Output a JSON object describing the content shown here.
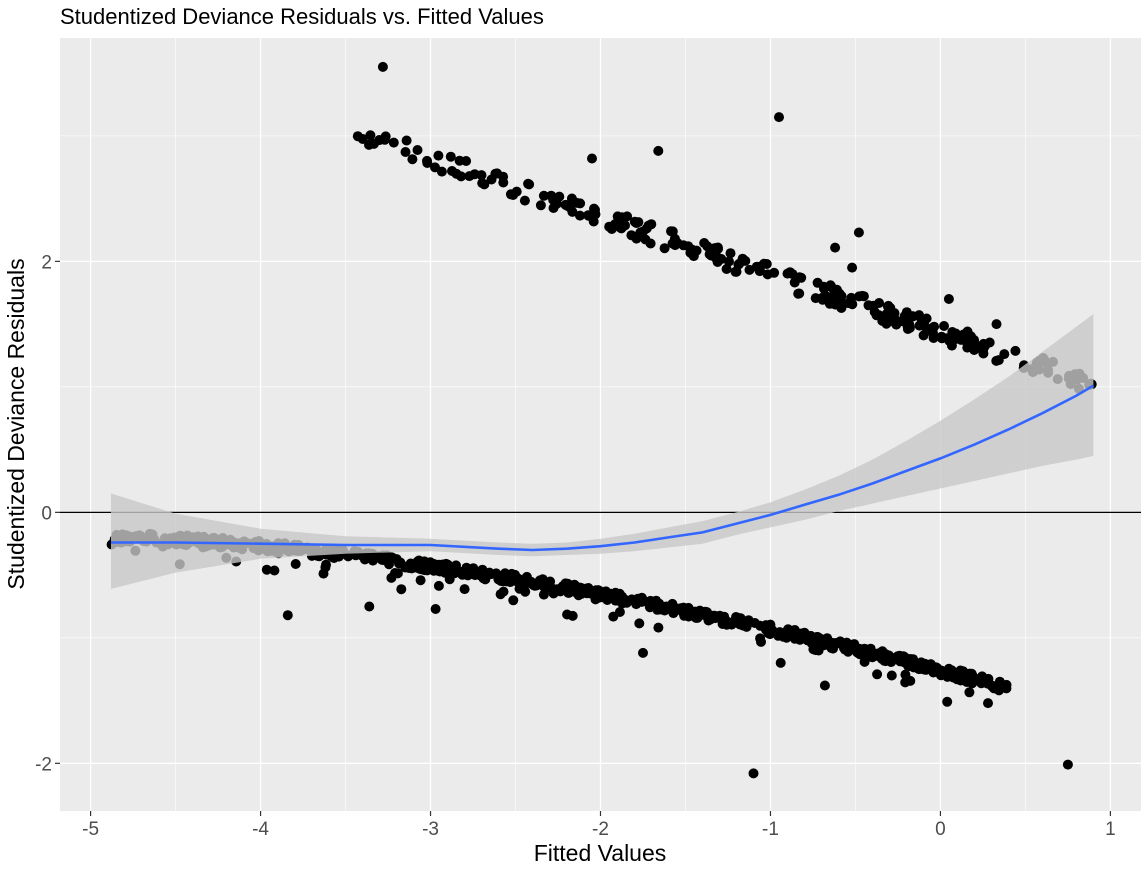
{
  "chart_data": {
    "type": "scatter",
    "title": "Studentized Deviance Residuals vs. Fitted Values",
    "xlabel": "Fitted Values",
    "ylabel": "Studentized Deviance Residuals",
    "xlim": [
      -5.18,
      1.18
    ],
    "ylim": [
      -2.38,
      3.78
    ],
    "x_ticks": [
      -5,
      -4,
      -3,
      -2,
      -1,
      0,
      1
    ],
    "x_tick_labels": [
      "-5",
      "-4",
      "-3",
      "-2",
      "-1",
      "0",
      "1"
    ],
    "y_ticks": [
      -2,
      0,
      2
    ],
    "y_tick_labels": [
      "-2",
      "0",
      "2"
    ],
    "grid": true,
    "legend": "none",
    "reference_line": {
      "y": 0,
      "color": "#000000"
    },
    "colors": {
      "panel": "#ebebeb",
      "gridline": "#ffffff",
      "points": "#000000",
      "smooth": "#3366ff",
      "ribbon": "#c8c8c8"
    },
    "upper_band": {
      "x_start": -3.5,
      "x_end": 0.9,
      "y_at_start": 3.05,
      "y_at_end": 1.02
    },
    "lower_band": {
      "x_start": -4.88,
      "x_end": 0.4,
      "y_at_start": -0.2,
      "y_at_end": -1.4
    },
    "outliers": [
      {
        "x": -3.28,
        "y": 3.55
      },
      {
        "x": -0.95,
        "y": 3.15
      },
      {
        "x": -1.1,
        "y": -2.08
      },
      {
        "x": 0.75,
        "y": -2.01
      },
      {
        "x": -3.84,
        "y": -0.82
      },
      {
        "x": -2.97,
        "y": -0.77
      },
      {
        "x": -3.36,
        "y": -0.75
      },
      {
        "x": -1.75,
        "y": -1.12
      },
      {
        "x": -2.05,
        "y": 2.82
      },
      {
        "x": -1.66,
        "y": 2.88
      },
      {
        "x": -0.48,
        "y": 2.23
      },
      {
        "x": -0.62,
        "y": 2.11
      },
      {
        "x": -0.52,
        "y": 1.95
      },
      {
        "x": 0.05,
        "y": 1.7
      },
      {
        "x": 0.33,
        "y": 1.5
      },
      {
        "x": 0.49,
        "y": 1.15
      },
      {
        "x": 0.28,
        "y": -1.52
      },
      {
        "x": 0.04,
        "y": -1.51
      },
      {
        "x": 0.12,
        "y": -1.34
      },
      {
        "x": -0.68,
        "y": -1.38
      },
      {
        "x": -0.94,
        "y": -1.2
      },
      {
        "x": 0.89,
        "y": 1.02
      }
    ],
    "smooth": {
      "x": [
        -4.88,
        -4.5,
        -4.0,
        -3.5,
        -3.0,
        -2.6,
        -2.4,
        -2.2,
        -2.0,
        -1.8,
        -1.6,
        -1.4,
        -1.2,
        -1.0,
        -0.8,
        -0.6,
        -0.4,
        -0.2,
        0.0,
        0.2,
        0.4,
        0.6,
        0.8,
        0.9
      ],
      "y": [
        -0.24,
        -0.24,
        -0.25,
        -0.26,
        -0.26,
        -0.29,
        -0.3,
        -0.29,
        -0.27,
        -0.24,
        -0.2,
        -0.16,
        -0.09,
        -0.02,
        0.06,
        0.14,
        0.23,
        0.33,
        0.43,
        0.54,
        0.66,
        0.79,
        0.93,
        1.01
      ]
    },
    "ribbon": {
      "x": [
        -4.88,
        -4.5,
        -4.0,
        -3.5,
        -3.0,
        -2.6,
        -2.4,
        -2.2,
        -2.0,
        -1.8,
        -1.6,
        -1.4,
        -1.2,
        -1.0,
        -0.8,
        -0.6,
        -0.4,
        -0.2,
        0.0,
        0.2,
        0.4,
        0.6,
        0.8,
        0.9
      ],
      "upper": [
        0.15,
        -0.01,
        -0.13,
        -0.19,
        -0.21,
        -0.24,
        -0.25,
        -0.24,
        -0.21,
        -0.17,
        -0.12,
        -0.07,
        0.0,
        0.08,
        0.18,
        0.29,
        0.42,
        0.57,
        0.73,
        0.9,
        1.08,
        1.28,
        1.48,
        1.58
      ],
      "lower": [
        -0.61,
        -0.48,
        -0.37,
        -0.33,
        -0.31,
        -0.34,
        -0.35,
        -0.34,
        -0.33,
        -0.31,
        -0.28,
        -0.25,
        -0.18,
        -0.12,
        -0.06,
        0.01,
        0.07,
        0.13,
        0.19,
        0.25,
        0.31,
        0.37,
        0.42,
        0.45
      ]
    }
  }
}
